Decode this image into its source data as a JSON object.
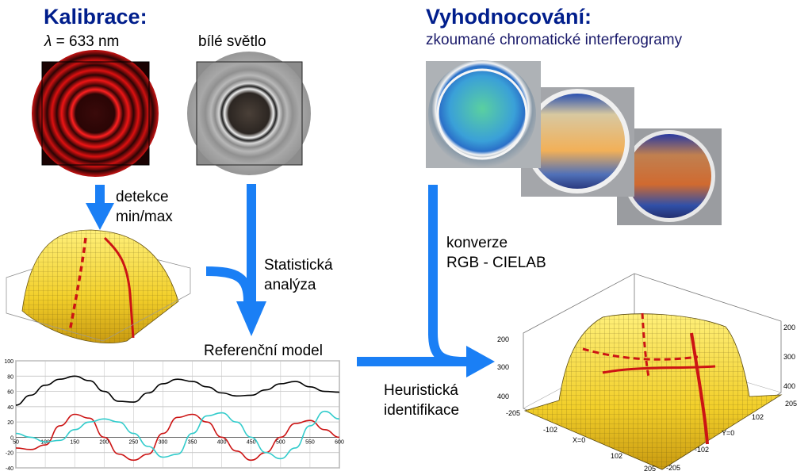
{
  "calibration": {
    "title": "Kalibrace:",
    "lambda_symbol": "λ",
    "wavelength_text": "= 633 nm",
    "white_light": "bílé světlo"
  },
  "evaluation": {
    "title": "Vyhodnocování:",
    "subtitle": "zkoumané chromatické interferogramy"
  },
  "labels": {
    "detection_line1": "detekce",
    "detection_line2": "min/max",
    "statistics_line1": "Statistická",
    "statistics_line2": "analýza",
    "reference_model": "Referenční model",
    "conversion_line1": "konverze",
    "conversion_line2": "RGB - CIELAB",
    "heuristic_line1": "Heuristická",
    "heuristic_line2": "identifikace"
  },
  "surface_plot_right": {
    "left_ticks": [
      "200",
      "300",
      "400"
    ],
    "right_ticks": [
      "200",
      "300",
      "400"
    ],
    "x_ticks": [
      "-205",
      "-102",
      "X=0",
      "102",
      "205"
    ],
    "y_ticks": [
      "205",
      "102",
      "Y=0",
      "-102",
      "-205"
    ]
  },
  "colors": {
    "title": "#001e8c",
    "arrow": "#1a7ff5",
    "surface_yellow": "#f5d832",
    "profile_red": "#cc1414"
  },
  "chart_data": {
    "type": "line",
    "title": "",
    "xlabel": "",
    "ylabel": "",
    "xlim": [
      50,
      600
    ],
    "ylim": [
      -40,
      100
    ],
    "x_ticks": [
      "50",
      "100",
      "150",
      "200",
      "250",
      "300",
      "350",
      "400",
      "450",
      "500",
      "550",
      "600"
    ],
    "y_ticks": [
      "100",
      "80",
      "60",
      "40",
      "20",
      "0",
      "-20",
      "-40"
    ],
    "grid": true,
    "x": [
      50,
      75,
      100,
      125,
      150,
      175,
      200,
      225,
      250,
      275,
      300,
      325,
      350,
      375,
      400,
      425,
      450,
      475,
      500,
      525,
      550,
      575,
      600
    ],
    "series": [
      {
        "color": "#000000",
        "values": [
          42,
          55,
          68,
          76,
          80,
          74,
          60,
          47,
          46,
          58,
          70,
          76,
          73,
          66,
          58,
          54,
          55,
          62,
          70,
          73,
          66,
          60,
          59
        ]
      },
      {
        "color": "#cc1414",
        "values": [
          -14,
          -16,
          -10,
          15,
          30,
          25,
          0,
          -22,
          -30,
          -22,
          5,
          26,
          30,
          20,
          0,
          -18,
          -30,
          -20,
          0,
          18,
          22,
          10,
          0
        ]
      },
      {
        "color": "#33cccc",
        "values": [
          5,
          0,
          -6,
          -4,
          10,
          20,
          24,
          20,
          5,
          -12,
          -26,
          -22,
          5,
          28,
          32,
          20,
          0,
          -20,
          -28,
          -14,
          15,
          34,
          24
        ]
      }
    ]
  }
}
